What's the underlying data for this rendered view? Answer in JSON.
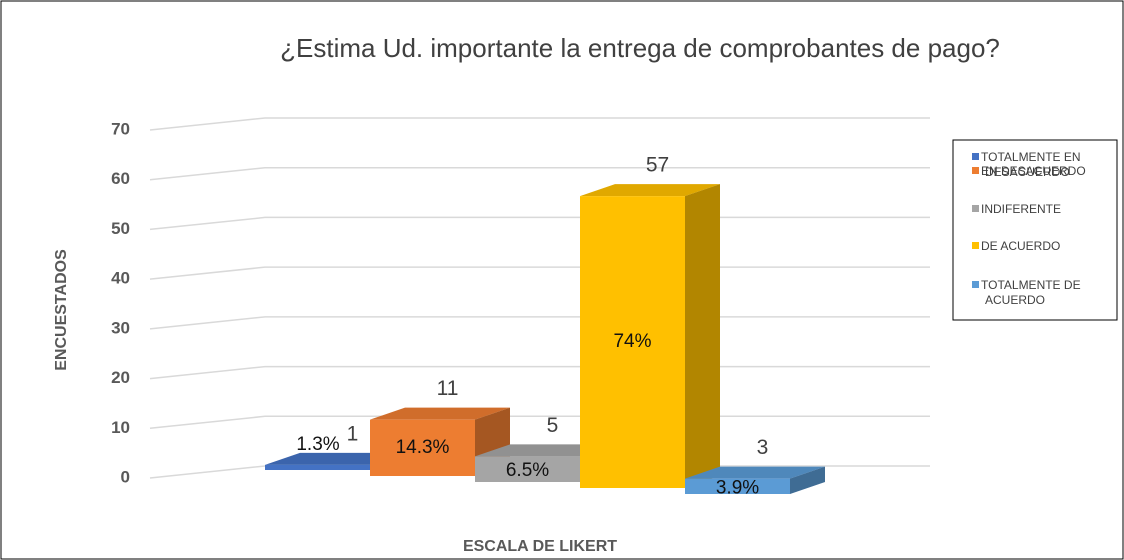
{
  "chart_data": {
    "type": "bar3d",
    "title": "¿Estima Ud. importante la entrega de comprobantes de pago?",
    "xlabel": "ESCALA DE LIKERT",
    "ylabel": "ENCUESTADOS",
    "categories": [
      "TOTALMENTE EN DESACUERDO",
      "EN DESACUERDO",
      "INDIFERENTE",
      "DE ACUERDO",
      "TOTALMENTE DE ACUERDO"
    ],
    "values": [
      1,
      11,
      5,
      57,
      3
    ],
    "percent_labels": [
      "1.3%",
      "14.3%",
      "6.5%",
      "74%",
      "3.9%"
    ],
    "colors": [
      "#4472c4",
      "#ed7d31",
      "#a5a5a5",
      "#ffc000",
      "#5b9bd5"
    ],
    "ylim": [
      0,
      70
    ],
    "yticks": [
      0,
      10,
      20,
      30,
      40,
      50,
      60,
      70
    ],
    "grid": true,
    "legend": "right"
  }
}
